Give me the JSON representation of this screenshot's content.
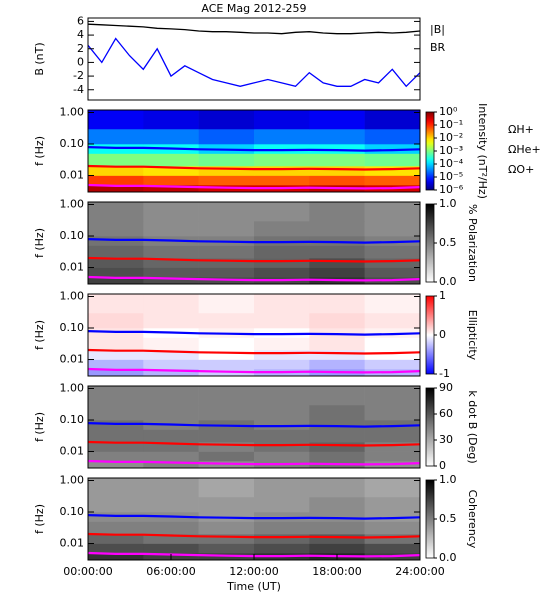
{
  "chart_data": [
    {
      "type": "line",
      "title": "ACE Mag 2012-259",
      "y_label": "B (nT)",
      "x": [
        0,
        1,
        2,
        3,
        4,
        5,
        6,
        7,
        8,
        9,
        10,
        11,
        12,
        13,
        14,
        15,
        16,
        17,
        18,
        19,
        20,
        21,
        22,
        23,
        24
      ],
      "xlim": [
        0,
        24
      ],
      "ylim": [
        -5.5,
        6.5
      ],
      "yticks": [
        -4,
        -2,
        0,
        2,
        4,
        6
      ],
      "series": [
        {
          "name": "|B|",
          "color": "#000000",
          "values": [
            5.6,
            5.5,
            5.4,
            5.3,
            5.2,
            5.0,
            4.9,
            4.8,
            4.6,
            4.5,
            4.5,
            4.4,
            4.3,
            4.3,
            4.2,
            4.4,
            4.5,
            4.3,
            4.2,
            4.2,
            4.3,
            4.4,
            4.3,
            4.4,
            4.6
          ]
        },
        {
          "name": "BR",
          "color": "#0000ff",
          "values": [
            2.5,
            0,
            3.5,
            1,
            -1,
            2,
            -2,
            -0.5,
            -1.5,
            -2.5,
            -3,
            -3.5,
            -3,
            -2.5,
            -3,
            -3.5,
            -1.5,
            -3,
            -3.5,
            -3.5,
            -2.5,
            -3,
            -1,
            -3.5,
            -1.5
          ]
        }
      ]
    },
    {
      "type": "heatmap",
      "y_label": "f (Hz)",
      "log_y": true,
      "xlim": [
        0,
        24
      ],
      "ylim": [
        0.003,
        1.2
      ],
      "yticks": [
        {
          "value": 1,
          "label": "1.00"
        },
        {
          "value": 0.1,
          "label": "0.10"
        },
        {
          "value": 0.01,
          "label": "0.01"
        }
      ],
      "x_bins": [
        0,
        4,
        8,
        12,
        16,
        20,
        24
      ],
      "y_bins": [
        0.003,
        0.005,
        0.01,
        0.02,
        0.05,
        0.1,
        0.3,
        1.2
      ],
      "z": [
        [
          0.5,
          0.4,
          0.3,
          0.3,
          0.4,
          0.3
        ],
        [
          0.08,
          0.06,
          0.05,
          0.05,
          0.06,
          0.05
        ],
        [
          0.01,
          0.008,
          0.01,
          0.01,
          0.01,
          0.008
        ],
        [
          0.001,
          0.001,
          0.0008,
          0.001,
          0.001,
          0.0008
        ],
        [
          0.0002,
          0.0002,
          0.0001,
          0.0002,
          0.0002,
          0.0001
        ],
        [
          3e-05,
          3e-05,
          2e-05,
          3e-05,
          3e-05,
          2e-05
        ],
        [
          5e-06,
          4e-06,
          3e-06,
          4e-06,
          5e-06,
          3e-06
        ]
      ],
      "colorbar": {
        "label": "Intensity (nT²/Hz)",
        "colormap": "jet",
        "log": true,
        "clim": [
          1e-06,
          1
        ],
        "ticks": [
          {
            "value": 1,
            "label": "10⁰"
          },
          {
            "value": 0.1,
            "label": "10⁻¹"
          },
          {
            "value": 0.01,
            "label": "10⁻²"
          },
          {
            "value": 0.001,
            "label": "10⁻³"
          },
          {
            "value": 0.0001,
            "label": "10⁻⁴"
          },
          {
            "value": 1e-05,
            "label": "10⁻⁵"
          },
          {
            "value": 1e-06,
            "label": "10⁻⁶"
          }
        ]
      },
      "x": [
        0,
        2,
        4,
        6,
        8,
        10,
        12,
        14,
        16,
        18,
        20,
        22,
        24
      ],
      "series": [
        {
          "name": "ΩH+",
          "color": "#0000ff",
          "values": [
            0.08,
            0.075,
            0.075,
            0.072,
            0.068,
            0.066,
            0.064,
            0.064,
            0.065,
            0.064,
            0.062,
            0.064,
            0.068
          ]
        },
        {
          "name": "ΩHe+",
          "color": "#ff0000",
          "values": [
            0.02,
            0.019,
            0.019,
            0.018,
            0.017,
            0.0165,
            0.016,
            0.016,
            0.0163,
            0.016,
            0.0155,
            0.016,
            0.017
          ]
        },
        {
          "name": "ΩO+",
          "color": "#ff00ff",
          "values": [
            0.005,
            0.0047,
            0.0047,
            0.0045,
            0.0043,
            0.0041,
            0.004,
            0.004,
            0.0041,
            0.004,
            0.0039,
            0.004,
            0.0043
          ]
        }
      ]
    },
    {
      "type": "heatmap",
      "y_label": "f (Hz)",
      "log_y": true,
      "xlim": [
        0,
        24
      ],
      "ylim": [
        0.003,
        1.2
      ],
      "yticks": [
        {
          "value": 1,
          "label": "1.00"
        },
        {
          "value": 0.1,
          "label": "0.10"
        },
        {
          "value": 0.01,
          "label": "0.01"
        }
      ],
      "x_bins": [
        0,
        4,
        8,
        12,
        16,
        20,
        24
      ],
      "y_bins": [
        0.003,
        0.005,
        0.01,
        0.02,
        0.05,
        0.1,
        0.3,
        1.2
      ],
      "z": [
        [
          0.75,
          0.7,
          0.7,
          0.72,
          0.8,
          0.7
        ],
        [
          0.7,
          0.65,
          0.65,
          0.7,
          0.75,
          0.65
        ],
        [
          0.65,
          0.6,
          0.6,
          0.62,
          0.7,
          0.6
        ],
        [
          0.6,
          0.55,
          0.55,
          0.6,
          0.6,
          0.55
        ],
        [
          0.55,
          0.5,
          0.5,
          0.55,
          0.55,
          0.5
        ],
        [
          0.5,
          0.45,
          0.45,
          0.5,
          0.5,
          0.45
        ],
        [
          0.5,
          0.45,
          0.45,
          0.45,
          0.5,
          0.45
        ]
      ],
      "colorbar": {
        "label": "% Polarization",
        "colormap": "gray",
        "log": false,
        "clim": [
          0,
          1
        ],
        "ticks": [
          {
            "value": 0,
            "label": "0.0"
          },
          {
            "value": 0.5,
            "label": "0.5"
          },
          {
            "value": 1,
            "label": "1.0"
          }
        ]
      },
      "x": [
        0,
        2,
        4,
        6,
        8,
        10,
        12,
        14,
        16,
        18,
        20,
        22,
        24
      ],
      "series": [
        {
          "color": "#0000ff",
          "values": [
            0.08,
            0.075,
            0.075,
            0.072,
            0.068,
            0.066,
            0.064,
            0.064,
            0.065,
            0.064,
            0.062,
            0.064,
            0.068
          ]
        },
        {
          "color": "#ff0000",
          "values": [
            0.02,
            0.019,
            0.019,
            0.018,
            0.017,
            0.0165,
            0.016,
            0.016,
            0.0163,
            0.016,
            0.0155,
            0.016,
            0.017
          ]
        },
        {
          "color": "#ff00ff",
          "values": [
            0.005,
            0.0047,
            0.0047,
            0.0045,
            0.0043,
            0.0041,
            0.004,
            0.004,
            0.0041,
            0.004,
            0.0039,
            0.004,
            0.0043
          ]
        }
      ]
    },
    {
      "type": "heatmap",
      "y_label": "f (Hz)",
      "log_y": true,
      "xlim": [
        0,
        24
      ],
      "ylim": [
        0.003,
        1.2
      ],
      "yticks": [
        {
          "value": 1,
          "label": "1.00"
        },
        {
          "value": 0.1,
          "label": "0.10"
        },
        {
          "value": 0.01,
          "label": "0.01"
        }
      ],
      "x_bins": [
        0,
        4,
        8,
        12,
        16,
        20,
        24
      ],
      "y_bins": [
        0.003,
        0.005,
        0.01,
        0.02,
        0.05,
        0.1,
        0.3,
        1.2
      ],
      "z": [
        [
          -0.4,
          -0.3,
          -0.2,
          -0.3,
          -0.4,
          -0.3
        ],
        [
          -0.3,
          -0.2,
          -0.2,
          -0.2,
          -0.3,
          -0.2
        ],
        [
          -0.1,
          -0.1,
          0,
          -0.1,
          -0.1,
          0
        ],
        [
          0.1,
          0.05,
          0,
          0.05,
          0.1,
          0
        ],
        [
          0.1,
          0,
          0.05,
          0,
          0.1,
          0.05
        ],
        [
          0.15,
          0.1,
          0.1,
          0.1,
          0.15,
          0.1
        ],
        [
          0.1,
          0.1,
          0.05,
          0.1,
          0.1,
          0.05
        ]
      ],
      "colorbar": {
        "label": "Ellipticity",
        "colormap": "bwr",
        "log": false,
        "clim": [
          -1,
          1
        ],
        "ticks": [
          -1,
          0,
          1
        ]
      },
      "x": [
        0,
        2,
        4,
        6,
        8,
        10,
        12,
        14,
        16,
        18,
        20,
        22,
        24
      ],
      "series": [
        {
          "color": "#0000ff",
          "values": [
            0.08,
            0.075,
            0.075,
            0.072,
            0.068,
            0.066,
            0.064,
            0.064,
            0.065,
            0.064,
            0.062,
            0.064,
            0.068
          ]
        },
        {
          "color": "#ff0000",
          "values": [
            0.02,
            0.019,
            0.019,
            0.018,
            0.017,
            0.0165,
            0.016,
            0.016,
            0.0163,
            0.016,
            0.0155,
            0.016,
            0.017
          ]
        },
        {
          "color": "#ff00ff",
          "values": [
            0.005,
            0.0047,
            0.0047,
            0.0045,
            0.0043,
            0.0041,
            0.004,
            0.004,
            0.0041,
            0.004,
            0.0039,
            0.004,
            0.0043
          ]
        }
      ]
    },
    {
      "type": "heatmap",
      "y_label": "f (Hz)",
      "log_y": true,
      "xlim": [
        0,
        24
      ],
      "ylim": [
        0.003,
        1.2
      ],
      "yticks": [
        {
          "value": 1,
          "label": "1.00"
        },
        {
          "value": 0.1,
          "label": "0.10"
        },
        {
          "value": 0.01,
          "label": "0.01"
        }
      ],
      "x_bins": [
        0,
        4,
        8,
        12,
        16,
        20,
        24
      ],
      "y_bins": [
        0.003,
        0.005,
        0.01,
        0.02,
        0.05,
        0.1,
        0.3,
        1.2
      ],
      "z": [
        [
          40,
          45,
          40,
          45,
          50,
          40
        ],
        [
          45,
          45,
          50,
          45,
          50,
          45
        ],
        [
          50,
          50,
          45,
          50,
          55,
          45
        ],
        [
          50,
          50,
          50,
          50,
          50,
          50
        ],
        [
          50,
          45,
          50,
          45,
          50,
          50
        ],
        [
          45,
          45,
          45,
          45,
          50,
          45
        ],
        [
          45,
          45,
          45,
          45,
          45,
          45
        ]
      ],
      "colorbar": {
        "label": "k dot B (Deg)",
        "colormap": "gray",
        "log": false,
        "clim": [
          0,
          90
        ],
        "ticks": [
          0,
          30,
          60,
          90
        ]
      },
      "x": [
        0,
        2,
        4,
        6,
        8,
        10,
        12,
        14,
        16,
        18,
        20,
        22,
        24
      ],
      "series": [
        {
          "color": "#0000ff",
          "values": [
            0.08,
            0.075,
            0.075,
            0.072,
            0.068,
            0.066,
            0.064,
            0.064,
            0.065,
            0.064,
            0.062,
            0.064,
            0.068
          ]
        },
        {
          "color": "#ff0000",
          "values": [
            0.02,
            0.019,
            0.019,
            0.018,
            0.017,
            0.0165,
            0.016,
            0.016,
            0.0163,
            0.016,
            0.0155,
            0.016,
            0.017
          ]
        },
        {
          "color": "#ff00ff",
          "values": [
            0.005,
            0.0047,
            0.0047,
            0.0045,
            0.0043,
            0.0041,
            0.004,
            0.004,
            0.0041,
            0.004,
            0.0039,
            0.004,
            0.0043
          ]
        }
      ]
    },
    {
      "type": "heatmap",
      "y_label": "f (Hz)",
      "log_y": true,
      "xlim": [
        0,
        24
      ],
      "ylim": [
        0.003,
        1.2
      ],
      "yticks": [
        {
          "value": 1,
          "label": "1.00"
        },
        {
          "value": 0.1,
          "label": "0.10"
        },
        {
          "value": 0.01,
          "label": "0.01"
        }
      ],
      "x_bins": [
        0,
        4,
        8,
        12,
        16,
        20,
        24
      ],
      "y_bins": [
        0.003,
        0.005,
        0.01,
        0.02,
        0.05,
        0.1,
        0.3,
        1.2
      ],
      "z": [
        [
          0.8,
          0.75,
          0.75,
          0.8,
          0.85,
          0.75
        ],
        [
          0.7,
          0.7,
          0.65,
          0.7,
          0.75,
          0.7
        ],
        [
          0.6,
          0.55,
          0.55,
          0.6,
          0.65,
          0.55
        ],
        [
          0.5,
          0.5,
          0.45,
          0.5,
          0.5,
          0.45
        ],
        [
          0.45,
          0.45,
          0.4,
          0.45,
          0.45,
          0.4
        ],
        [
          0.4,
          0.4,
          0.4,
          0.4,
          0.45,
          0.4
        ],
        [
          0.4,
          0.4,
          0.35,
          0.4,
          0.4,
          0.35
        ]
      ],
      "colorbar": {
        "label": "Coherency",
        "colormap": "gray",
        "log": false,
        "clim": [
          0,
          1
        ],
        "ticks": [
          {
            "value": 0,
            "label": "0.0"
          },
          {
            "value": 0.5,
            "label": "0.5"
          },
          {
            "value": 1,
            "label": "1.0"
          }
        ]
      },
      "x": [
        0,
        2,
        4,
        6,
        8,
        10,
        12,
        14,
        16,
        18,
        20,
        22,
        24
      ],
      "x_label": "Time (UT)",
      "xticks": [
        {
          "value": 0,
          "label": "00:00:00"
        },
        {
          "value": 6,
          "label": "06:00:00"
        },
        {
          "value": 12,
          "label": "12:00:00"
        },
        {
          "value": 18,
          "label": "18:00:00"
        },
        {
          "value": 24,
          "label": "24:00:00"
        }
      ],
      "series": [
        {
          "color": "#0000ff",
          "values": [
            0.08,
            0.075,
            0.075,
            0.072,
            0.068,
            0.066,
            0.064,
            0.064,
            0.065,
            0.064,
            0.062,
            0.064,
            0.068
          ]
        },
        {
          "color": "#ff0000",
          "values": [
            0.02,
            0.019,
            0.019,
            0.018,
            0.017,
            0.0165,
            0.016,
            0.016,
            0.0163,
            0.016,
            0.0155,
            0.016,
            0.017
          ]
        },
        {
          "color": "#ff00ff",
          "values": [
            0.005,
            0.0047,
            0.0047,
            0.0045,
            0.0043,
            0.0041,
            0.004,
            0.004,
            0.0041,
            0.004,
            0.0039,
            0.004,
            0.0043
          ]
        }
      ]
    }
  ]
}
